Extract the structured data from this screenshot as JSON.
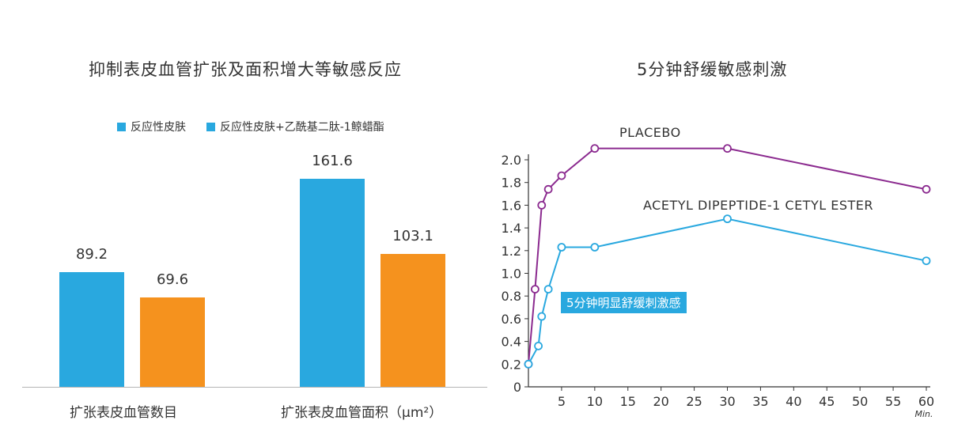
{
  "chart_data": [
    {
      "type": "bar",
      "title": "抑制表皮血管扩张及面积增大等敏感反应",
      "categories": [
        "扩张表皮血管数目",
        "扩张表皮血管面积（μm²）"
      ],
      "series": [
        {
          "name": "反应性皮肤",
          "color": "#29a8df",
          "values": [
            89.2,
            161.6
          ]
        },
        {
          "name": "反应性皮肤+乙酰基二肽-1鲸蜡酯",
          "color": "#f5921e",
          "values": [
            69.6,
            103.1
          ]
        }
      ],
      "value_labels": [
        [
          "89.2",
          "161.6"
        ],
        [
          "69.6",
          "103.1"
        ]
      ],
      "legend_position": "top-left",
      "grid": false,
      "ylim": [
        0,
        200
      ]
    },
    {
      "type": "line",
      "title": "5分钟舒缓敏感刺激",
      "x_unit": "Min.",
      "x_ticks": [
        "5",
        "10",
        "15",
        "20",
        "25",
        "30",
        "35",
        "40",
        "45",
        "50",
        "55",
        "60"
      ],
      "y_ticks": [
        "0",
        "0.2",
        "0.4",
        "0.6",
        "0.8",
        "1.0",
        "1.2",
        "1.4",
        "1.6",
        "1.8",
        "2.0"
      ],
      "xlim": [
        0,
        60
      ],
      "ylim": [
        0,
        2.0
      ],
      "grid": false,
      "series": [
        {
          "name": "PLACEBO",
          "color": "#8b2a8f",
          "x": [
            0,
            1,
            2,
            3,
            5,
            10,
            30,
            60
          ],
          "y": [
            0.2,
            0.86,
            1.6,
            1.74,
            1.86,
            2.1,
            2.1,
            1.74
          ]
        },
        {
          "name": "ACETYL DIPEPTIDE-1 CETYL ESTER",
          "color": "#29a8df",
          "x": [
            0,
            1.5,
            2,
            3,
            5,
            10,
            30,
            60
          ],
          "y": [
            0.2,
            0.36,
            0.62,
            0.86,
            1.23,
            1.23,
            1.48,
            1.11
          ]
        }
      ],
      "annotation": "5分钟明显舒缓刺激感"
    }
  ]
}
